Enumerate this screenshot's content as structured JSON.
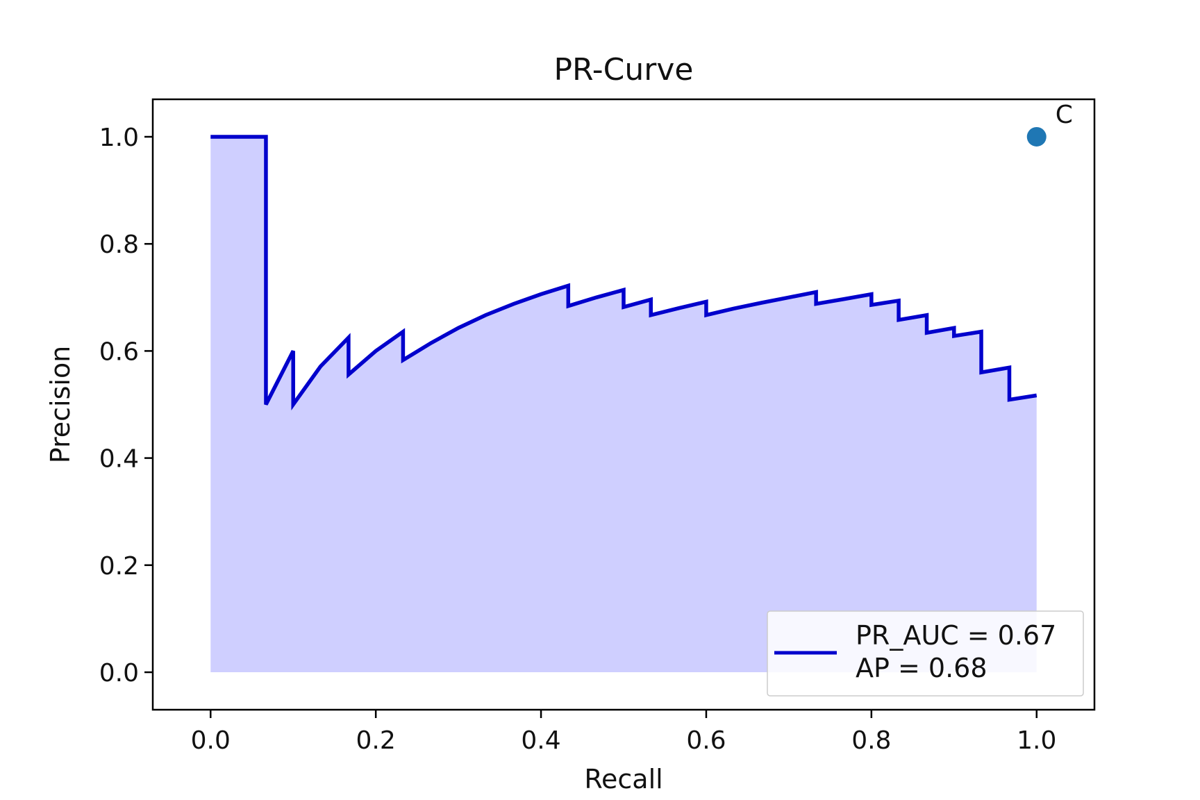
{
  "chart_data": {
    "type": "line",
    "title": "PR-Curve",
    "xlabel": "Recall",
    "ylabel": "Precision",
    "xlim": [
      -0.07,
      1.07
    ],
    "ylim": [
      -0.07,
      1.07
    ],
    "xticks": [
      "0.0",
      "0.2",
      "0.4",
      "0.6",
      "0.8",
      "1.0"
    ],
    "yticks": [
      "0.0",
      "0.2",
      "0.4",
      "0.6",
      "0.8",
      "1.0"
    ],
    "grid": false,
    "legend_position": "lower-right",
    "colors": {
      "line": "#0000cc",
      "fill": "#ccccff",
      "point": "#1f77b4"
    },
    "legend": [
      "PR_AUC = 0.67",
      "AP = 0.68"
    ],
    "series": [
      {
        "x": [
          0.0,
          0.067,
          0.067,
          0.1,
          0.1,
          0.133,
          0.167,
          0.167,
          0.2,
          0.233,
          0.233,
          0.267,
          0.3,
          0.333,
          0.367,
          0.4,
          0.433,
          0.433,
          0.467,
          0.5,
          0.5,
          0.533,
          0.533,
          0.567,
          0.6,
          0.6,
          0.633,
          0.667,
          0.7,
          0.733,
          0.733,
          0.767,
          0.8,
          0.8,
          0.833,
          0.833,
          0.867,
          0.867,
          0.9,
          0.9,
          0.933,
          0.933,
          0.967,
          0.967,
          1.0
        ],
        "y": [
          1.0,
          1.0,
          0.5,
          0.6,
          0.5,
          0.571,
          0.625,
          0.556,
          0.6,
          0.636,
          0.583,
          0.615,
          0.643,
          0.667,
          0.688,
          0.706,
          0.722,
          0.684,
          0.7,
          0.714,
          0.682,
          0.696,
          0.667,
          0.68,
          0.692,
          0.667,
          0.679,
          0.69,
          0.7,
          0.71,
          0.688,
          0.697,
          0.706,
          0.686,
          0.694,
          0.658,
          0.667,
          0.634,
          0.643,
          0.628,
          0.636,
          0.56,
          0.569,
          0.509,
          0.517
        ]
      }
    ],
    "point": {
      "x": 1.0,
      "y": 1.0,
      "label": "C"
    }
  }
}
